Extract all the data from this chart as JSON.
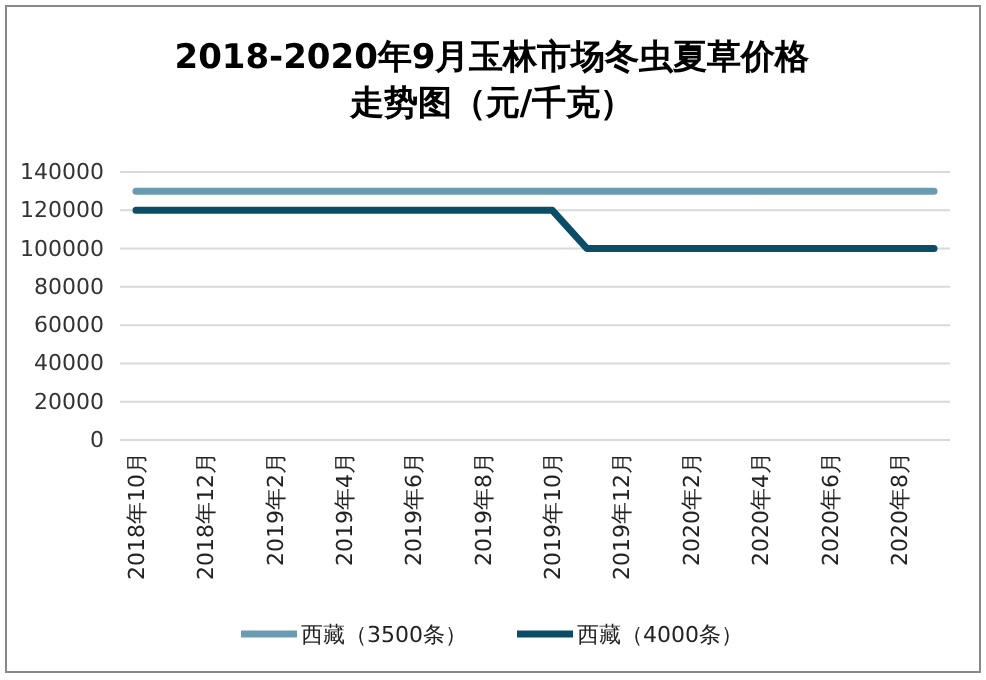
{
  "chart_data": {
    "type": "line",
    "title": "2018-2020年9月玉林市场冬虫夏草价格走势图（元/千克）",
    "categories": [
      "2018年10月",
      null,
      "2018年12月",
      null,
      "2019年2月",
      null,
      "2019年4月",
      null,
      "2019年6月",
      null,
      "2019年8月",
      null,
      "2019年10月",
      null,
      "2019年12月",
      null,
      "2020年2月",
      null,
      "2020年4月",
      null,
      "2020年6月",
      null,
      "2020年8月",
      null
    ],
    "series": [
      {
        "name": "西藏（3500条）",
        "color": "#6a9bb1",
        "values": [
          130000,
          130000,
          130000,
          130000,
          130000,
          130000,
          130000,
          130000,
          130000,
          130000,
          130000,
          130000,
          130000,
          130000,
          130000,
          130000,
          130000,
          130000,
          130000,
          130000,
          130000,
          130000,
          130000,
          130000
        ]
      },
      {
        "name": "西藏（4000条）",
        "color": "#0b4d66",
        "values": [
          120000,
          120000,
          120000,
          120000,
          120000,
          120000,
          120000,
          120000,
          120000,
          120000,
          120000,
          120000,
          120000,
          100000,
          100000,
          100000,
          100000,
          100000,
          100000,
          100000,
          100000,
          100000,
          100000,
          100000
        ]
      }
    ],
    "ylim": [
      0,
      140000
    ],
    "yticks": [
      0,
      20000,
      40000,
      60000,
      80000,
      100000,
      120000,
      140000
    ],
    "grid": "y",
    "legend": "bottom",
    "marker": "none",
    "line_style": "solid"
  }
}
